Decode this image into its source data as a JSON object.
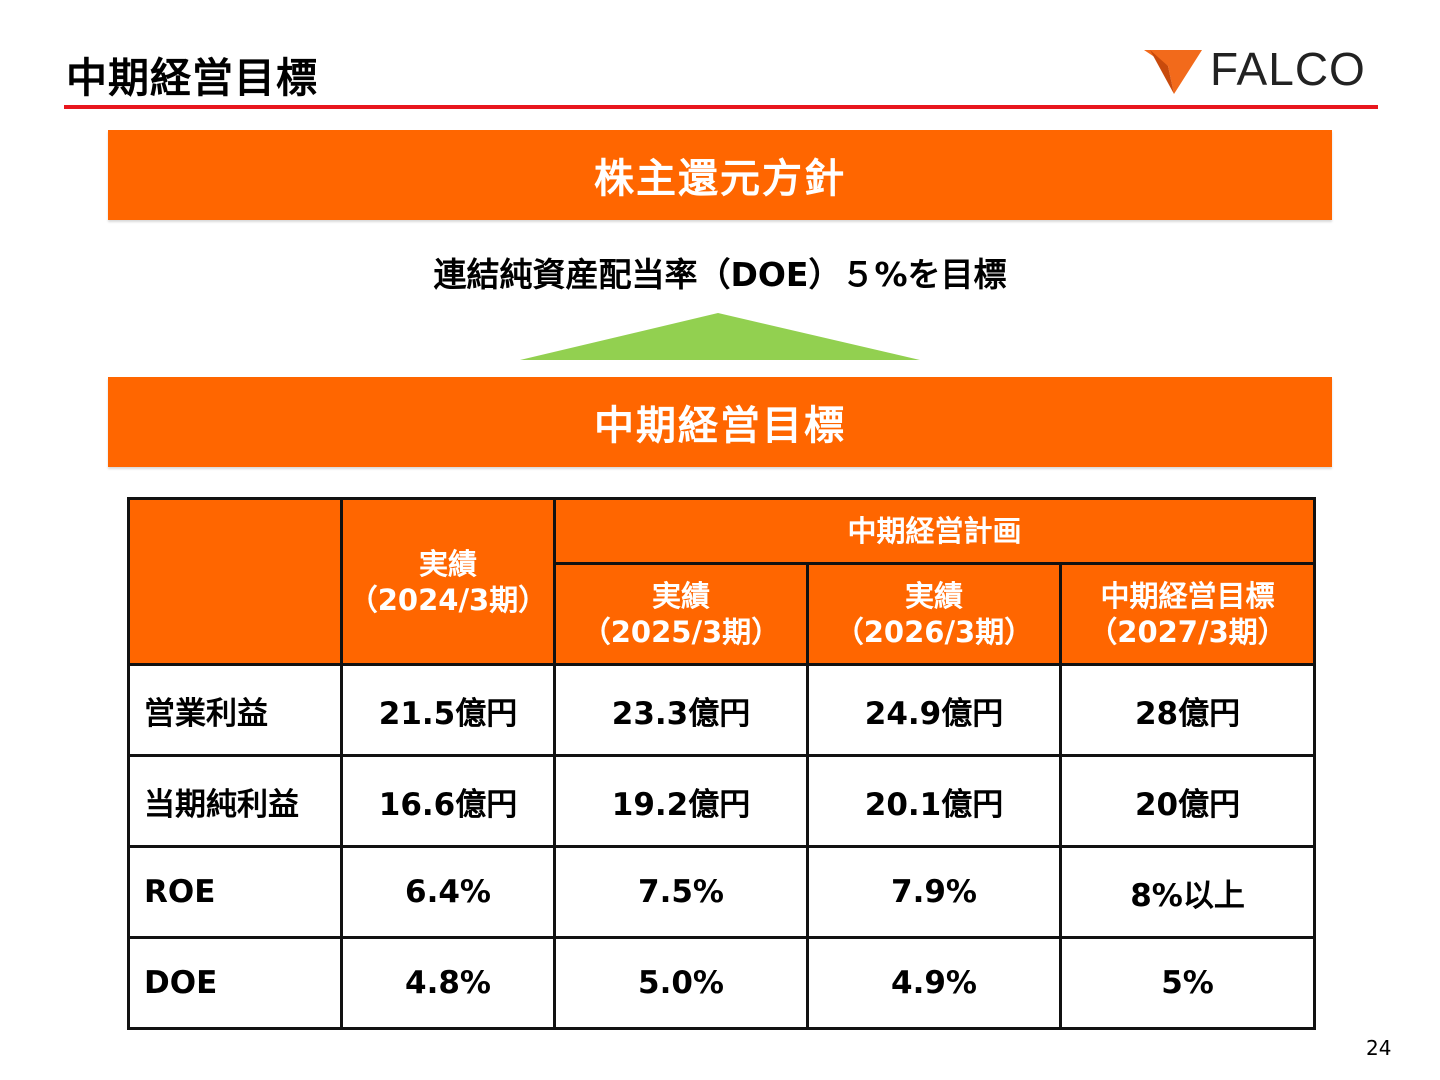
{
  "header": {
    "title": "中期経営目標",
    "logo_text": "FALCO"
  },
  "policy": {
    "banner_label": "株主還元方針",
    "target_text": "連結純資産配当率（DOE）５%を目標"
  },
  "goal": {
    "banner_label": "中期経営目標"
  },
  "table": {
    "plan_group_header": "中期経営計画",
    "columns": [
      {
        "title": "実績",
        "period": "（2024/3期）"
      },
      {
        "title": "実績",
        "period": "（2025/3期）"
      },
      {
        "title": "実績",
        "period": "（2026/3期）"
      },
      {
        "title": "中期経営目標",
        "period": "（2027/3期）"
      }
    ],
    "rows": [
      {
        "label": "営業利益",
        "values": [
          "21.5億円",
          "23.3億円",
          "24.9億円",
          "28億円"
        ]
      },
      {
        "label": "当期純利益",
        "values": [
          "16.6億円",
          "19.2億円",
          "20.1億円",
          "20億円"
        ]
      },
      {
        "label": "ROE",
        "values": [
          "6.4%",
          "7.5%",
          "7.9%",
          "8%以上"
        ]
      },
      {
        "label": "DOE",
        "values": [
          "4.8%",
          "5.0%",
          "4.9%",
          "5%"
        ]
      }
    ]
  },
  "footer": {
    "page_number": "24"
  },
  "colors": {
    "accent_orange": "#ff6600",
    "rule_red": "#e8161d",
    "arrow_green": "#92d050",
    "logo_orange": "#f26a1b"
  }
}
